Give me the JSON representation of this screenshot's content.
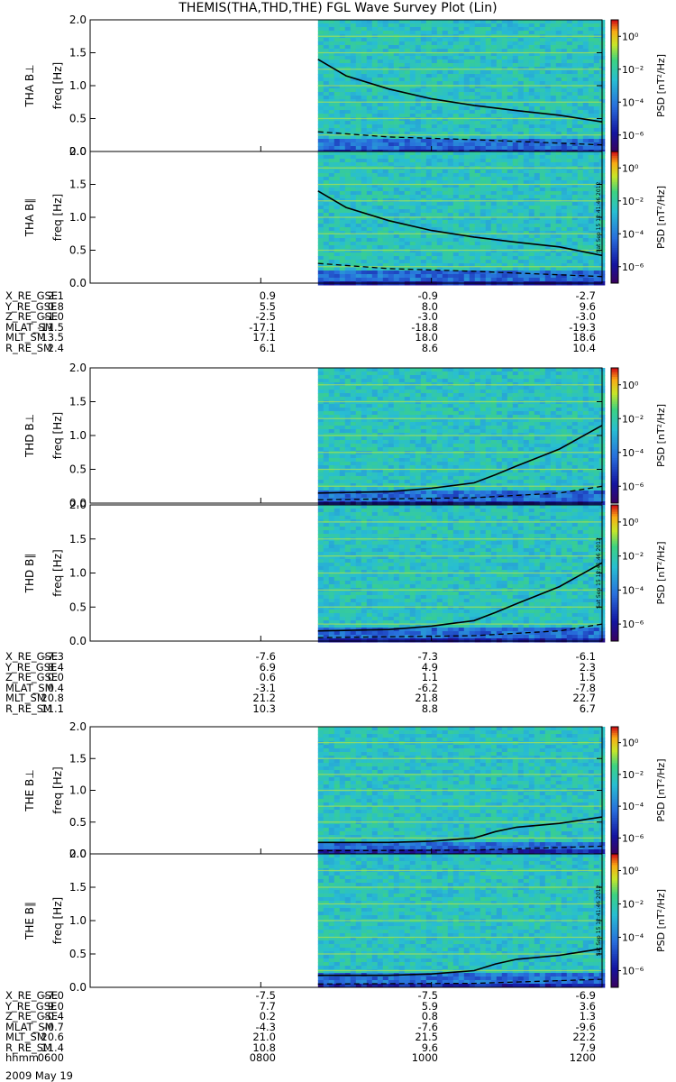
{
  "title": "THEMIS(THA,THD,THE) FGL Wave Survey Plot (Lin)",
  "colorbar": {
    "label": "PSD [nT²/Hz]",
    "ticks": [
      "10⁰",
      "10⁻²",
      "10⁻⁴",
      "10⁻⁶"
    ],
    "log_range": [
      -7,
      1
    ]
  },
  "freq_axis": {
    "label": "freq [Hz]",
    "ticks": [
      "2.0",
      "1.5",
      "1.0",
      "0.5",
      "0.0"
    ],
    "ylim": [
      0,
      2.0
    ]
  },
  "time_axis": {
    "label": "hhmm",
    "ticks": [
      "0600",
      "0800",
      "1000",
      "1200"
    ],
    "date": "2009 May 19"
  },
  "stamp": "Sat Sep 15 12:41:46 2012",
  "probes": [
    {
      "id": "THA",
      "panels": [
        {
          "label": "THA B⊥",
          "data_start_hhmm": "0840",
          "fce_line": [
            [
              8.67,
              1.4
            ],
            [
              9.0,
              1.15
            ],
            [
              9.5,
              0.95
            ],
            [
              10.0,
              0.8
            ],
            [
              10.5,
              0.7
            ],
            [
              11.0,
              0.62
            ],
            [
              11.5,
              0.55
            ],
            [
              12.0,
              0.45
            ]
          ],
          "dashed_line": [
            [
              8.67,
              0.3
            ],
            [
              9.5,
              0.22
            ],
            [
              10.5,
              0.18
            ],
            [
              12.0,
              0.1
            ]
          ]
        },
        {
          "label": "THA B∥",
          "data_start_hhmm": "0840",
          "fce_line": [
            [
              8.67,
              1.4
            ],
            [
              9.0,
              1.15
            ],
            [
              9.5,
              0.95
            ],
            [
              10.0,
              0.8
            ],
            [
              10.5,
              0.7
            ],
            [
              11.0,
              0.62
            ],
            [
              11.5,
              0.55
            ],
            [
              12.0,
              0.42
            ]
          ],
          "dashed_line": [
            [
              8.67,
              0.3
            ],
            [
              9.5,
              0.22
            ],
            [
              10.5,
              0.18
            ],
            [
              12.0,
              0.1
            ]
          ]
        }
      ],
      "ephemeris": [
        {
          "name": "X_RE_GSE",
          "values": [
            "2.1",
            "0.9",
            "-0.9",
            "-2.7"
          ]
        },
        {
          "name": "Y_RE_GSE",
          "values": [
            "0.8",
            "5.5",
            "8.0",
            "9.6"
          ]
        },
        {
          "name": "Z_RE_GSE",
          "values": [
            "-1.0",
            "-2.5",
            "-3.0",
            "-3.0"
          ]
        },
        {
          "name": "MLAT_SM",
          "values": [
            "-11.5",
            "-17.1",
            "-18.8",
            "-19.3"
          ]
        },
        {
          "name": "MLT_SM",
          "values": [
            "13.5",
            "17.1",
            "18.0",
            "18.6"
          ]
        },
        {
          "name": "R_RE_SM",
          "values": [
            "2.4",
            "6.1",
            "8.6",
            "10.4"
          ]
        }
      ]
    },
    {
      "id": "THD",
      "panels": [
        {
          "label": "THD B⊥",
          "data_start_hhmm": "0840",
          "fce_line": [
            [
              8.67,
              0.15
            ],
            [
              9.5,
              0.17
            ],
            [
              10.0,
              0.22
            ],
            [
              10.5,
              0.3
            ],
            [
              10.75,
              0.42
            ],
            [
              11.0,
              0.55
            ],
            [
              11.5,
              0.8
            ],
            [
              12.0,
              1.15
            ]
          ],
          "dashed_line": [
            [
              8.67,
              0.05
            ],
            [
              10.5,
              0.08
            ],
            [
              11.5,
              0.15
            ],
            [
              12.0,
              0.25
            ]
          ]
        },
        {
          "label": "THD B∥",
          "data_start_hhmm": "0840",
          "fce_line": [
            [
              8.67,
              0.15
            ],
            [
              9.5,
              0.17
            ],
            [
              10.0,
              0.22
            ],
            [
              10.5,
              0.3
            ],
            [
              10.75,
              0.42
            ],
            [
              11.0,
              0.55
            ],
            [
              11.5,
              0.8
            ],
            [
              12.0,
              1.15
            ]
          ],
          "dashed_line": [
            [
              8.67,
              0.05
            ],
            [
              10.5,
              0.08
            ],
            [
              11.5,
              0.15
            ],
            [
              12.0,
              0.25
            ]
          ]
        }
      ],
      "ephemeris": [
        {
          "name": "X_RE_GSE",
          "values": [
            "-7.3",
            "-7.6",
            "-7.3",
            "-6.1"
          ]
        },
        {
          "name": "Y_RE_GSE",
          "values": [
            "8.4",
            "6.9",
            "4.9",
            "2.3"
          ]
        },
        {
          "name": "Z_RE_GSE",
          "values": [
            "0.0",
            "0.6",
            "1.1",
            "1.5"
          ]
        },
        {
          "name": "MLAT_SM",
          "values": [
            "0.4",
            "-3.1",
            "-6.2",
            "-7.8"
          ]
        },
        {
          "name": "MLT_SM",
          "values": [
            "20.8",
            "21.2",
            "21.8",
            "22.7"
          ]
        },
        {
          "name": "R_RE_SM",
          "values": [
            "11.1",
            "10.3",
            "8.8",
            "6.7"
          ]
        }
      ]
    },
    {
      "id": "THE",
      "panels": [
        {
          "label": "THE B⊥",
          "data_start_hhmm": "0840",
          "fce_line": [
            [
              8.67,
              0.18
            ],
            [
              9.5,
              0.18
            ],
            [
              10.0,
              0.2
            ],
            [
              10.5,
              0.25
            ],
            [
              10.75,
              0.35
            ],
            [
              11.0,
              0.42
            ],
            [
              11.5,
              0.48
            ],
            [
              12.0,
              0.58
            ]
          ],
          "dashed_line": [
            [
              8.67,
              0.05
            ],
            [
              10.5,
              0.06
            ],
            [
              12.0,
              0.12
            ]
          ]
        },
        {
          "label": "THE B∥",
          "data_start_hhmm": "0840",
          "fce_line": [
            [
              8.67,
              0.18
            ],
            [
              9.5,
              0.18
            ],
            [
              10.0,
              0.2
            ],
            [
              10.5,
              0.25
            ],
            [
              10.75,
              0.35
            ],
            [
              11.0,
              0.42
            ],
            [
              11.5,
              0.48
            ],
            [
              12.0,
              0.58
            ]
          ],
          "dashed_line": [
            [
              8.67,
              0.05
            ],
            [
              10.5,
              0.06
            ],
            [
              12.0,
              0.12
            ]
          ]
        }
      ],
      "ephemeris": [
        {
          "name": "X_RE_GSE",
          "values": [
            "-7.0",
            "-7.5",
            "-7.5",
            "-6.9"
          ]
        },
        {
          "name": "Y_RE_GSE",
          "values": [
            "9.0",
            "7.7",
            "5.9",
            "3.6"
          ]
        },
        {
          "name": "Z_RE_GSE",
          "values": [
            "-0.4",
            "0.2",
            "0.8",
            "1.3"
          ]
        },
        {
          "name": "MLAT_SM",
          "values": [
            "-0.7",
            "-4.3",
            "-7.6",
            "-9.6"
          ]
        },
        {
          "name": "MLT_SM",
          "values": [
            "20.6",
            "21.0",
            "21.5",
            "22.2"
          ]
        },
        {
          "name": "R_RE_SM",
          "values": [
            "11.4",
            "10.8",
            "9.6",
            "7.9"
          ]
        }
      ]
    }
  ],
  "chart_data": {
    "type": "heatmap",
    "title": "THEMIS(THA,THD,THE) FGL Wave Survey Plot (Lin)",
    "xlabel": "hhmm",
    "ylabel": "freq [Hz]",
    "xlim": [
      "0600",
      "1200"
    ],
    "ylim": [
      0,
      2.0
    ],
    "color_scale": "log",
    "color_range": [
      -7,
      1
    ],
    "colorbar_label": "PSD [nT²/Hz]"
  }
}
